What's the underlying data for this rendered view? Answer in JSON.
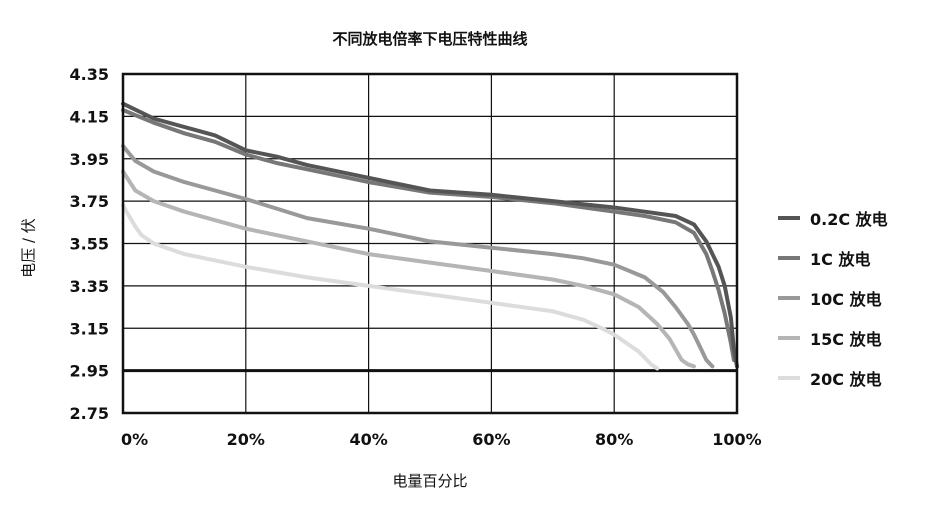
{
  "chart_data": {
    "type": "line",
    "title": "不同放电倍率下电压特性曲线",
    "xlabel": "电量百分比",
    "ylabel": "电压 / 伏",
    "x_ticks": [
      "0%",
      "20%",
      "40%",
      "60%",
      "80%",
      "100%"
    ],
    "y_ticks": [
      "2.75",
      "2.95",
      "3.15",
      "3.35",
      "3.55",
      "3.75",
      "3.95",
      "4.15",
      "4.35"
    ],
    "xlim": [
      0,
      100
    ],
    "ylim": [
      2.75,
      4.35
    ],
    "grid": true,
    "legend_position": "right",
    "series": [
      {
        "name": "0.2C 放电",
        "color": "#555555",
        "x": [
          0,
          5,
          10,
          15,
          20,
          25,
          30,
          40,
          50,
          60,
          70,
          80,
          85,
          90,
          93,
          95,
          97,
          98,
          99,
          99.5,
          100
        ],
        "y": [
          4.21,
          4.14,
          4.1,
          4.06,
          3.99,
          3.96,
          3.92,
          3.86,
          3.8,
          3.78,
          3.75,
          3.72,
          3.7,
          3.68,
          3.64,
          3.56,
          3.44,
          3.35,
          3.2,
          3.05,
          2.97
        ]
      },
      {
        "name": "1C 放电",
        "color": "#777777",
        "x": [
          0,
          5,
          10,
          15,
          20,
          25,
          30,
          40,
          50,
          60,
          70,
          80,
          85,
          90,
          93,
          95,
          96,
          97,
          98,
          99,
          99.5
        ],
        "y": [
          4.18,
          4.12,
          4.07,
          4.03,
          3.97,
          3.93,
          3.9,
          3.84,
          3.79,
          3.77,
          3.74,
          3.7,
          3.68,
          3.65,
          3.6,
          3.5,
          3.42,
          3.33,
          3.22,
          3.08,
          3.0
        ]
      },
      {
        "name": "10C 放电",
        "color": "#999999",
        "x": [
          0,
          2,
          5,
          10,
          15,
          20,
          30,
          40,
          50,
          60,
          70,
          75,
          80,
          85,
          88,
          90,
          92,
          93,
          94,
          95,
          96
        ],
        "y": [
          4.01,
          3.94,
          3.89,
          3.84,
          3.8,
          3.76,
          3.67,
          3.62,
          3.56,
          3.53,
          3.5,
          3.48,
          3.45,
          3.39,
          3.32,
          3.25,
          3.17,
          3.12,
          3.06,
          3.0,
          2.97
        ]
      },
      {
        "name": "15C 放电",
        "color": "#b5b5b5",
        "x": [
          0,
          2,
          5,
          10,
          15,
          20,
          30,
          40,
          50,
          60,
          70,
          75,
          80,
          84,
          87,
          89,
          90,
          91,
          92,
          93
        ],
        "y": [
          3.89,
          3.8,
          3.75,
          3.7,
          3.66,
          3.62,
          3.56,
          3.5,
          3.46,
          3.42,
          3.38,
          3.35,
          3.31,
          3.25,
          3.17,
          3.1,
          3.05,
          3.0,
          2.98,
          2.97
        ]
      },
      {
        "name": "20C 放电",
        "color": "#dcdcdc",
        "x": [
          0,
          1,
          2,
          3,
          5,
          10,
          15,
          20,
          30,
          40,
          50,
          60,
          70,
          75,
          78,
          80,
          82,
          84,
          85,
          86,
          87
        ],
        "y": [
          3.73,
          3.68,
          3.63,
          3.59,
          3.55,
          3.5,
          3.47,
          3.44,
          3.39,
          3.35,
          3.31,
          3.27,
          3.23,
          3.19,
          3.15,
          3.12,
          3.08,
          3.04,
          3.01,
          2.98,
          2.96
        ]
      }
    ]
  }
}
